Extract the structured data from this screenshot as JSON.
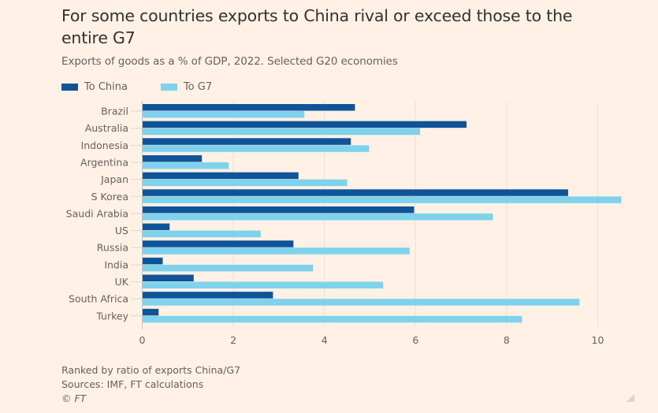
{
  "header": {
    "title": "For some countries exports to China rival or exceed those to the entire G7",
    "subtitle": "Exports of goods as a % of GDP, 2022. Selected G20 economies"
  },
  "legend": [
    {
      "label": "To China",
      "color": "#0f5499"
    },
    {
      "label": "To G7",
      "color": "#7fd2ec"
    }
  ],
  "footer": {
    "note": "Ranked by ratio of exports China/G7",
    "sources": "Sources: IMF, FT calculations",
    "copyright": "© FT"
  },
  "chart_data": {
    "type": "bar",
    "orientation": "horizontal",
    "title": "For some countries exports to China rival or exceed those to the entire G7",
    "subtitle": "Exports of goods as a % of GDP, 2022. Selected G20 economies",
    "xlabel": "",
    "ylabel": "",
    "xlim": [
      0,
      10.6
    ],
    "xticks": [
      0,
      2,
      4,
      6,
      8,
      10
    ],
    "grid": true,
    "legend_position": "top-left",
    "categories": [
      "Brazil",
      "Australia",
      "Indonesia",
      "Argentina",
      "Japan",
      "S Korea",
      "Saudi Arabia",
      "US",
      "Russia",
      "India",
      "UK",
      "South Africa",
      "Turkey"
    ],
    "series": [
      {
        "name": "To China",
        "color": "#0f5499",
        "values": [
          4.67,
          7.12,
          4.58,
          1.31,
          3.43,
          9.35,
          5.97,
          0.6,
          3.32,
          0.45,
          1.13,
          2.87,
          0.36
        ]
      },
      {
        "name": "To G7",
        "color": "#7fd2ec",
        "values": [
          3.56,
          6.1,
          4.98,
          1.9,
          4.5,
          10.52,
          7.7,
          2.6,
          5.87,
          3.75,
          5.29,
          9.6,
          8.34
        ]
      }
    ]
  }
}
